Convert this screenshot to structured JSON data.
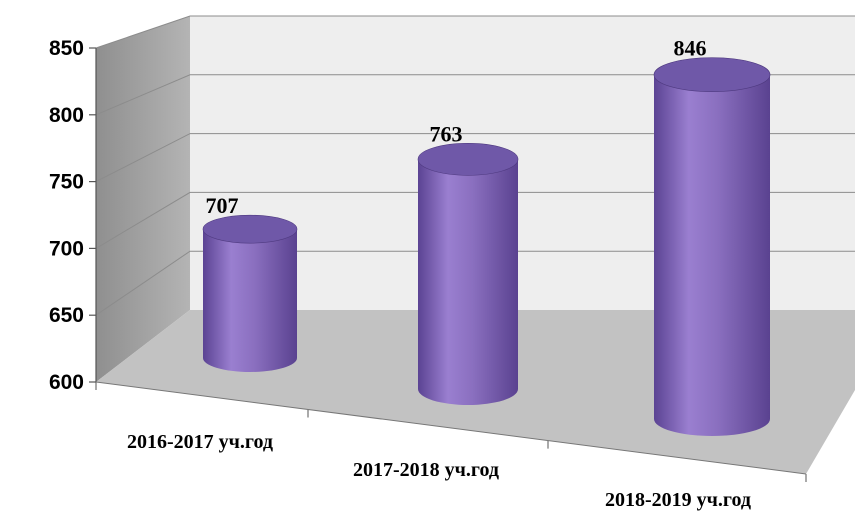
{
  "chart_data": {
    "type": "bar",
    "bar_shape": "cylinder",
    "categories": [
      "2016-2017 уч.год",
      "2017-2018 уч.год",
      "2018-2019 уч.год"
    ],
    "values": [
      707,
      763,
      846
    ],
    "data_labels": [
      "707",
      "763",
      "846"
    ],
    "ylim": [
      600,
      850
    ],
    "yticks": [
      "600",
      "650",
      "700",
      "750",
      "800",
      "850"
    ],
    "title": "",
    "xlabel": "",
    "ylabel": "",
    "grid": true,
    "legend": "none",
    "colors": {
      "bar": "#8a6fbf",
      "bar_dark": "#5a4290",
      "bar_top": "#6f58a8",
      "back_wall": "#eeeeee",
      "side_wall": "#a0a0a0",
      "floor": "#c0c0c0",
      "grid": "#8c8c8c"
    }
  }
}
